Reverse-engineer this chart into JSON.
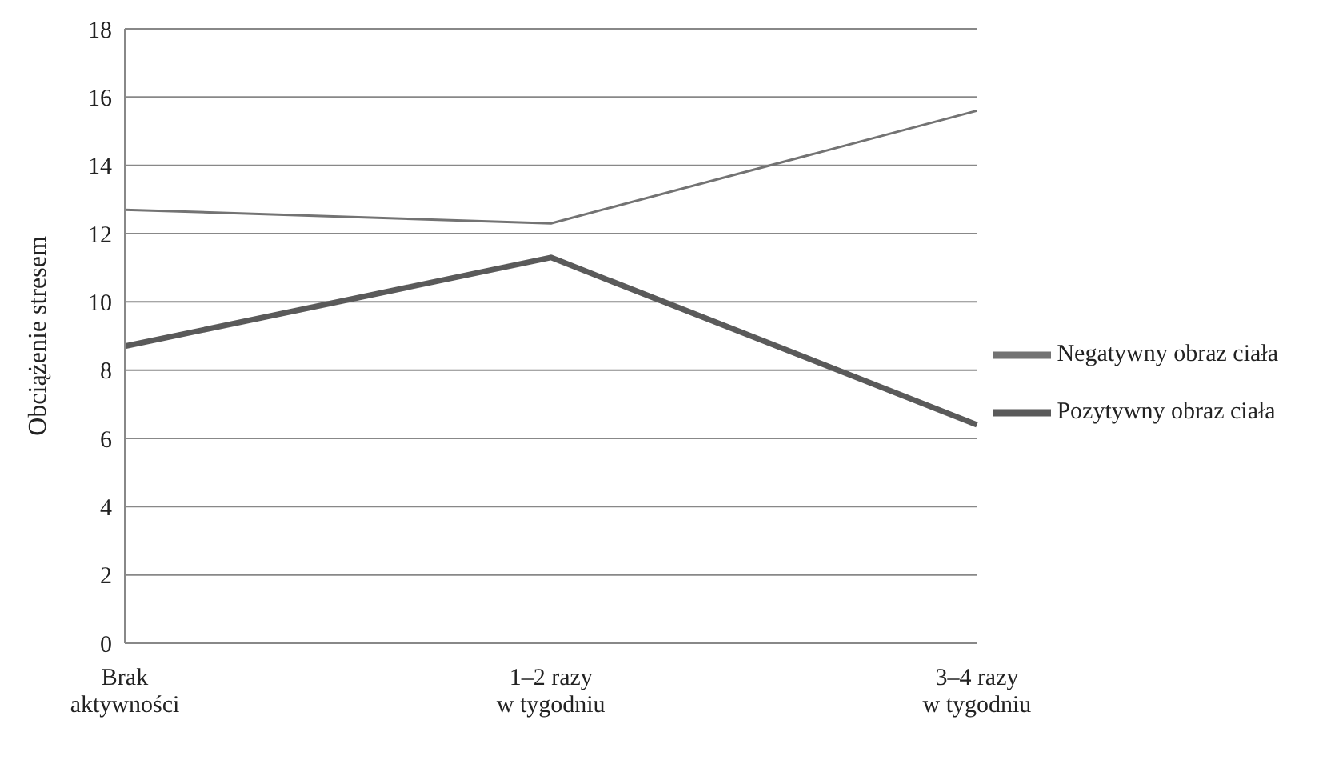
{
  "chart_data": {
    "type": "line",
    "ylabel": "Obciążenie stresem",
    "categories": [
      "Brak\naktywności",
      "1–2 razy\nw tygodniu",
      "3–4 razy\nw tygodniu"
    ],
    "series": [
      {
        "name": "Pozytywny obraz ciała",
        "color": "#5a5a5a",
        "values": [
          8.7,
          11.3,
          6.4
        ]
      },
      {
        "name": "Negatywny obraz ciała",
        "color": "#737373",
        "values": [
          12.7,
          12.3,
          15.6
        ]
      }
    ],
    "ylim": [
      0,
      18
    ],
    "yticks": [
      0,
      2,
      4,
      6,
      8,
      10,
      12,
      14,
      16,
      18
    ],
    "grid": "y",
    "legend": "right",
    "marker": "none",
    "line_style": "solid"
  }
}
